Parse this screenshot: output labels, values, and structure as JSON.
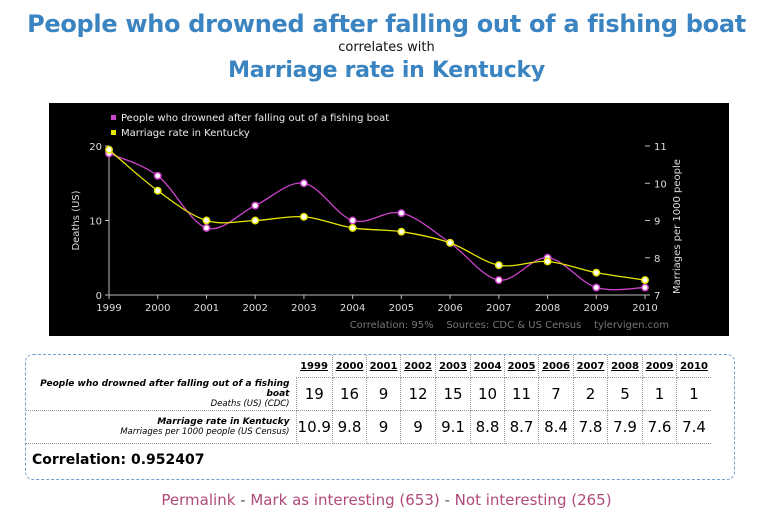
{
  "header": {
    "title_primary": "People who drowned after falling out of a fishing boat",
    "connector": "correlates with",
    "title_secondary": "Marriage rate in Kentucky"
  },
  "chart_data": {
    "type": "line",
    "x": [
      1999,
      2000,
      2001,
      2002,
      2003,
      2004,
      2005,
      2006,
      2007,
      2008,
      2009,
      2010
    ],
    "series": [
      {
        "name": "People who drowned after falling out of a fishing boat",
        "axis": "left",
        "color": "#cc44cc",
        "values": [
          19,
          16,
          9,
          12,
          15,
          10,
          11,
          7,
          2,
          5,
          1,
          1
        ]
      },
      {
        "name": "Marriage rate in Kentucky",
        "axis": "right",
        "color": "#e6e600",
        "values": [
          10.9,
          9.8,
          9,
          9,
          9.1,
          8.8,
          8.7,
          8.4,
          7.8,
          7.9,
          7.6,
          7.4
        ]
      }
    ],
    "ylabel_left": "Deaths (US)",
    "ylabel_right": "Marriages per 1000 people",
    "ylim_left": [
      0,
      20
    ],
    "ylim_right": [
      7,
      11
    ],
    "yticks_left": [
      "0",
      "10",
      "20"
    ],
    "yticks_right": [
      "7",
      "8",
      "9",
      "10",
      "11"
    ],
    "xticks": [
      "1999",
      "2000",
      "2001",
      "2002",
      "2003",
      "2004",
      "2005",
      "2006",
      "2007",
      "2008",
      "2009",
      "2010"
    ],
    "footer": "Correlation: 95%    Sources: CDC & US Census    tylervigen.com",
    "legend_position": "top-left",
    "grid": false
  },
  "table": {
    "years": [
      "1999",
      "2000",
      "2001",
      "2002",
      "2003",
      "2004",
      "2005",
      "2006",
      "2007",
      "2008",
      "2009",
      "2010"
    ],
    "rows": [
      {
        "label": "People who drowned after falling out of a fishing boat",
        "sublabel": "Deaths (US) (CDC)",
        "values": [
          "19",
          "16",
          "9",
          "12",
          "15",
          "10",
          "11",
          "7",
          "2",
          "5",
          "1",
          "1"
        ]
      },
      {
        "label": "Marriage rate in Kentucky",
        "sublabel": "Marriages per 1000 people (US Census)",
        "values": [
          "10.9",
          "9.8",
          "9",
          "9",
          "9.1",
          "8.8",
          "8.7",
          "8.4",
          "7.8",
          "7.9",
          "7.6",
          "7.4"
        ]
      }
    ],
    "correlation": "Correlation: 0.952407"
  },
  "links": {
    "permalink": "Permalink",
    "separator": " - ",
    "mark_interesting": "Mark as interesting (653)",
    "not_interesting": "Not interesting (265)"
  }
}
